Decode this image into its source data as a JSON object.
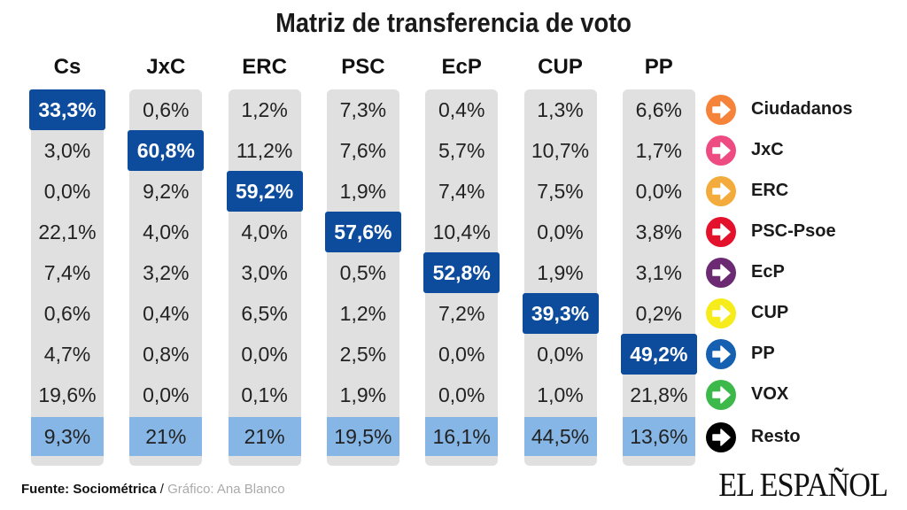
{
  "chart_data": {
    "type": "table",
    "title": "Matriz de transferencia de voto",
    "columns": [
      "Cs",
      "JxC",
      "ERC",
      "PSC",
      "EcP",
      "CUP",
      "PP"
    ],
    "rows": [
      {
        "label": "Ciudadanos",
        "color": "#f5843a",
        "values": [
          "33,3%",
          "0,6%",
          "1,2%",
          "7,3%",
          "0,4%",
          "1,3%",
          "6,6%"
        ]
      },
      {
        "label": "JxC",
        "color": "#ee4b82",
        "values": [
          "3,0%",
          "60,8%",
          "11,2%",
          "7,6%",
          "5,7%",
          "10,7%",
          "1,7%"
        ]
      },
      {
        "label": "ERC",
        "color": "#f3ab3c",
        "values": [
          "0,0%",
          "9,2%",
          "59,2%",
          "1,9%",
          "7,4%",
          "7,5%",
          "0,0%"
        ]
      },
      {
        "label": "PSC-Psoe",
        "color": "#e3112b",
        "values": [
          "22,1%",
          "4,0%",
          "4,0%",
          "57,6%",
          "10,4%",
          "0,0%",
          "3,8%"
        ]
      },
      {
        "label": "EcP",
        "color": "#6b2a72",
        "values": [
          "7,4%",
          "3,2%",
          "3,0%",
          "0,5%",
          "52,8%",
          "1,9%",
          "3,1%"
        ]
      },
      {
        "label": "CUP",
        "color": "#f6ec1c",
        "values": [
          "0,6%",
          "0,4%",
          "6,5%",
          "1,2%",
          "7,2%",
          "39,3%",
          "0,2%"
        ]
      },
      {
        "label": "PP",
        "color": "#1560b0",
        "values": [
          "4,7%",
          "0,8%",
          "0,0%",
          "2,5%",
          "0,0%",
          "0,0%",
          "49,2%"
        ]
      },
      {
        "label": "VOX",
        "color": "#3db84a",
        "values": [
          "19,6%",
          "0,0%",
          "0,1%",
          "1,9%",
          "0,0%",
          "1,0%",
          "21,8%"
        ]
      },
      {
        "label": "Resto",
        "color": "#000000",
        "values": [
          "9,3%",
          "21%",
          "21%",
          "19,5%",
          "16,1%",
          "44,5%",
          "13,6%"
        ]
      }
    ],
    "highlight": "diagonal",
    "colors": {
      "cell": "#e0e0e0",
      "highlight": "#0d4c9c",
      "total_row": "#86b6e6"
    }
  },
  "footer": {
    "source": "Fuente: Sociométrica",
    "separator": " / ",
    "credit": "Gráfico: Ana Blanco"
  },
  "logo": "EL ESPAÑOL"
}
